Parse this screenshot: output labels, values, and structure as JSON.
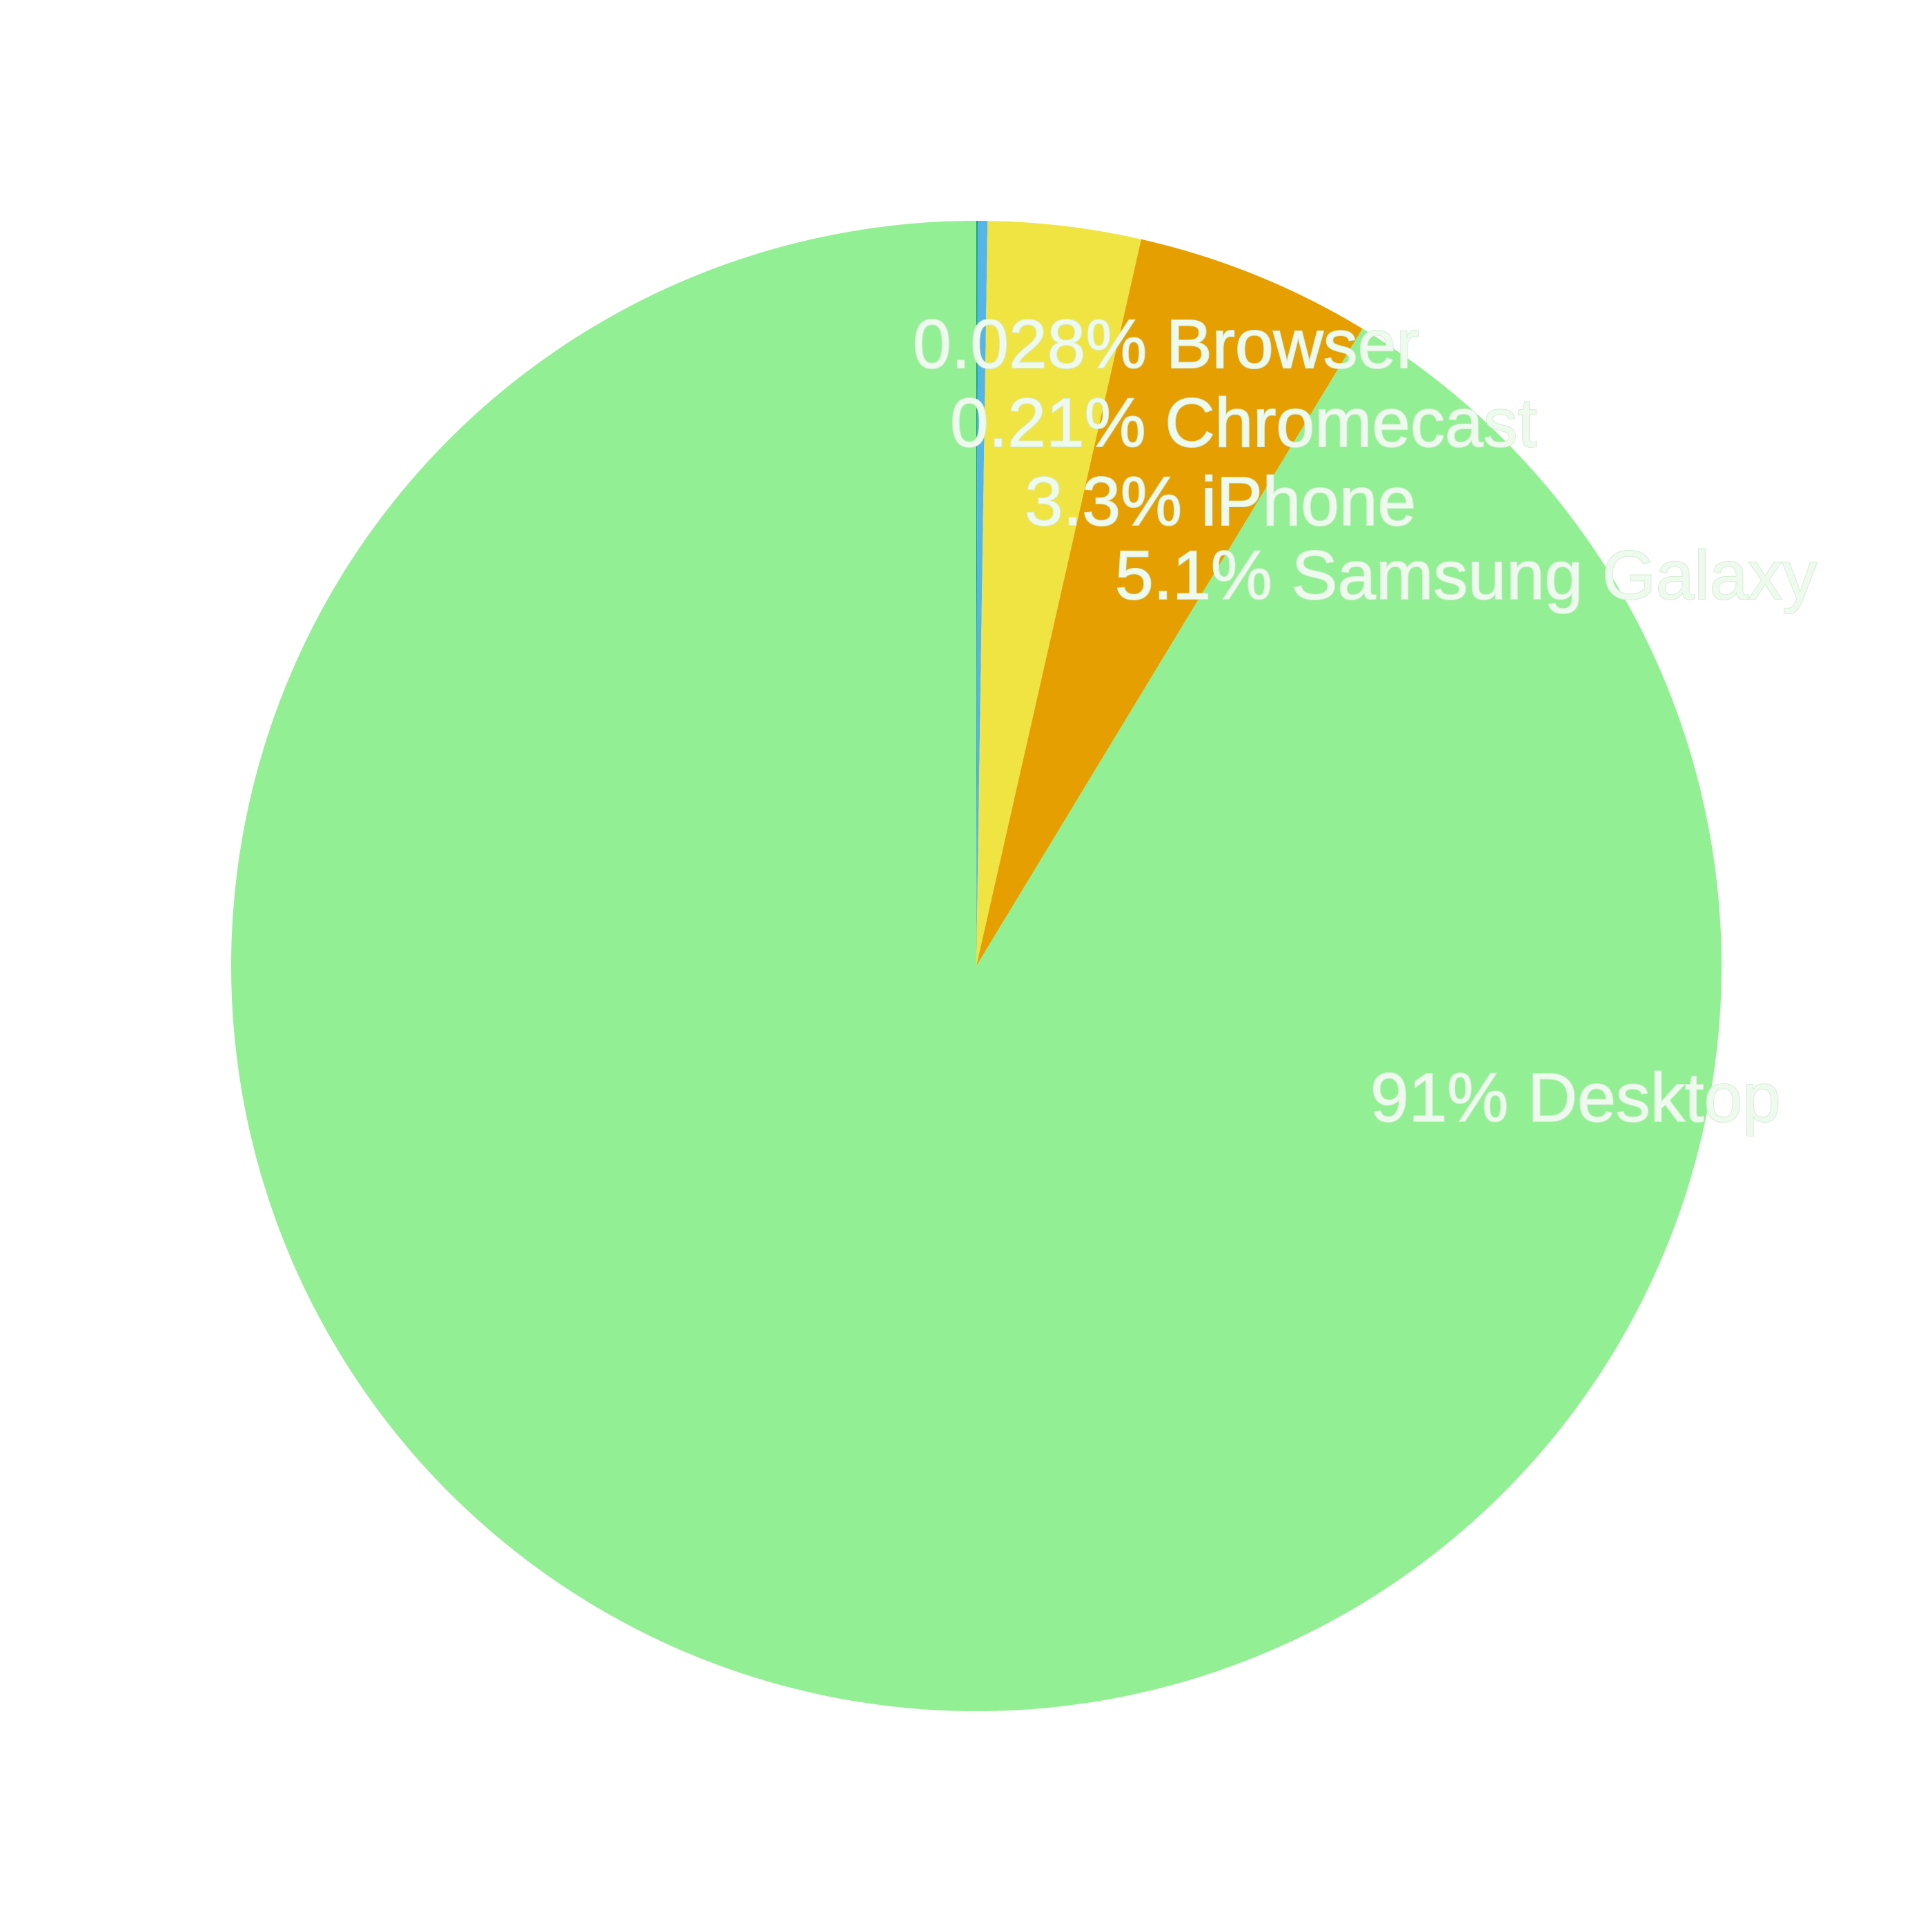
{
  "chart_data": {
    "type": "pie",
    "start_angle_deg": 90,
    "direction": "clockwise",
    "slices": [
      {
        "name": "Browser",
        "value": 0.028,
        "label": "0.028% Browser",
        "color": "#009e73"
      },
      {
        "name": "Chromecast",
        "value": 0.21,
        "label": "0.21% Chromecast",
        "color": "#56b4e9"
      },
      {
        "name": "iPhone",
        "value": 3.3,
        "label": "3.3% iPhone",
        "color": "#f0e442"
      },
      {
        "name": "Samsung Galaxy",
        "value": 5.1,
        "label": "5.1% Samsung Galaxy",
        "color": "#e69f00"
      },
      {
        "name": "Desktop",
        "value": 91,
        "label": "91% Desktop",
        "color": "#93ef93"
      }
    ]
  }
}
